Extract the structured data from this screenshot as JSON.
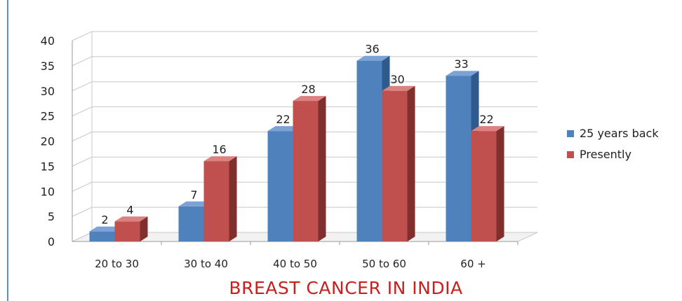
{
  "chart_data": {
    "type": "bar",
    "title": "BREAST CANCER IN INDIA",
    "categories": [
      "20 to 30",
      "30 to 40",
      "40 to 50",
      "50 to 60",
      "60 +"
    ],
    "series": [
      {
        "name": "25 years back",
        "values": [
          2,
          7,
          22,
          36,
          33
        ],
        "color": "#4f81bd",
        "side": "#2e5a8e",
        "top": "#7da3d6"
      },
      {
        "name": "Presently",
        "values": [
          4,
          16,
          28,
          30,
          22
        ],
        "color": "#c0504d",
        "side": "#7f2f2d",
        "top": "#d98280"
      }
    ],
    "ylim": [
      0,
      40
    ],
    "yticks": [
      0,
      5,
      10,
      15,
      20,
      25,
      30,
      35,
      40
    ],
    "grid": true,
    "legend": "right",
    "three_d": true
  }
}
